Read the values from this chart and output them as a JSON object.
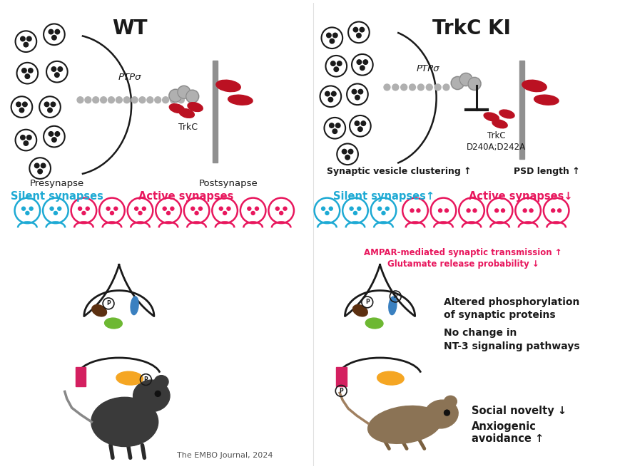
{
  "title_wt": "WT",
  "title_ki": "TrkC KI",
  "bg_color": "#ffffff",
  "cyan_color": "#1EAAD4",
  "magenta_color": "#E8175D",
  "dark_color": "#1a1a1a",
  "gray_color": "#aaaaaa",
  "red_color": "#BB1122",
  "brown_color": "#5C3010",
  "blue_protein": "#3A80C0",
  "green_protein": "#6DB832",
  "orange_protein": "#F5A623",
  "pink_protein": "#D42060",
  "presynapse_label": "Presynapse",
  "postsynapse_label": "Postsynapse",
  "ptpsigma_label": "PTPσ",
  "trkc_label": "TrkC",
  "trkc_ki_label": "TrkC\nD240A;D242A",
  "synaptic_vesicle_text": "Synaptic vesicle clustering ↑",
  "psd_length_text": "PSD length ↑",
  "silent_synapses_wt": "Silent synapses",
  "active_synapses_wt": "Active synapses",
  "silent_synapses_ki": "Silent synapses↑",
  "active_synapses_ki": "Active synapses↓",
  "ampar_text": "AMPAR-mediated synaptic transmission ↑",
  "glutamate_text": "Glutamate release probability ↓",
  "phospho_text": "Altered phosphorylation\nof synaptic proteins",
  "no_change_text": "No change in\nNT-3 signaling pathways",
  "social_text": "Social novelty ↓",
  "anxiogenic_text": "Anxiogenic\navoidance ↑",
  "embo_text": "The EMBO Journal, 2024"
}
